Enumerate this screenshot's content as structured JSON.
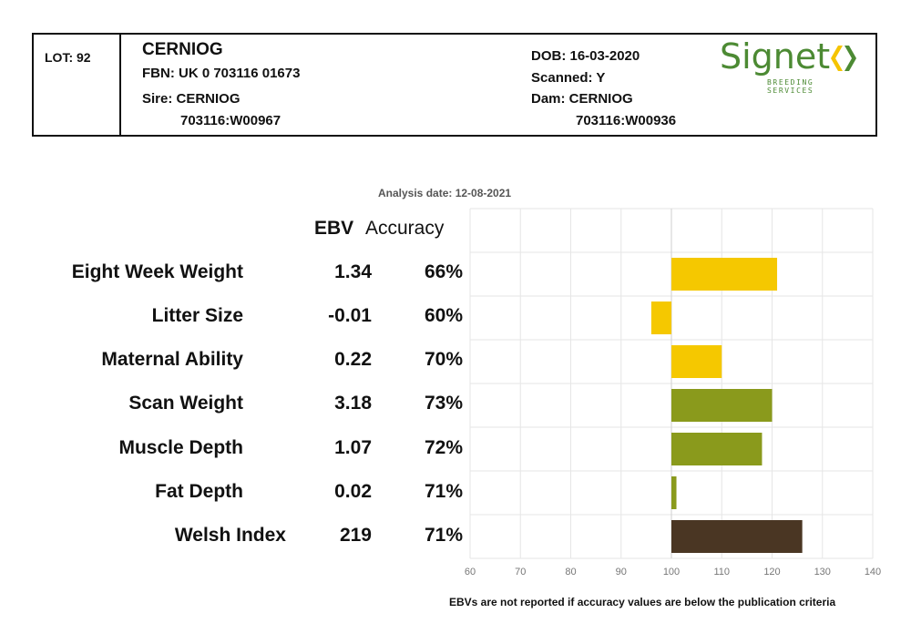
{
  "header": {
    "lot": "LOT: 92",
    "name": "CERNIOG",
    "fbn": "FBN: UK 0 703116 01673",
    "sire_label": "Sire: CERNIOG",
    "sire_id": "703116:W00967",
    "dob": "DOB: 16-03-2020",
    "scanned": "Scanned: Y",
    "dam_label": "Dam: CERNIOG",
    "dam_id": "703116:W00936"
  },
  "logo": {
    "word": "Signet",
    "sub": "BREEDING SERVICES",
    "colors": {
      "green": "#4c8a33",
      "yellow": "#f5c400"
    }
  },
  "analysis_date": "Analysis date: 12-08-2021",
  "columns": {
    "ebv": "EBV",
    "accuracy": "Accuracy"
  },
  "rows": [
    {
      "trait": "Eight Week Weight",
      "ebv": "1.34",
      "accuracy": "66%"
    },
    {
      "trait": "Litter Size",
      "ebv": "-0.01",
      "accuracy": "60%"
    },
    {
      "trait": "Maternal Ability",
      "ebv": "0.22",
      "accuracy": "70%"
    },
    {
      "trait": "Scan Weight",
      "ebv": "3.18",
      "accuracy": "73%"
    },
    {
      "trait": "Muscle Depth",
      "ebv": "1.07",
      "accuracy": "72%"
    },
    {
      "trait": "Fat Depth",
      "ebv": "0.02",
      "accuracy": "71%"
    },
    {
      "trait": "Welsh Index",
      "ebv": "219",
      "accuracy": "71%"
    }
  ],
  "chart_data": {
    "type": "bar",
    "orientation": "horizontal",
    "baseline": 100,
    "categories": [
      "Eight Week Weight",
      "Litter Size",
      "Maternal Ability",
      "Scan Weight",
      "Muscle Depth",
      "Fat Depth",
      "Welsh Index"
    ],
    "values": [
      121,
      96,
      110,
      120,
      118,
      101,
      126
    ],
    "colors": [
      "#f5c800",
      "#f5c800",
      "#f5c800",
      "#8a9a1c",
      "#8a9a1c",
      "#8a9a1c",
      "#4a3623"
    ],
    "xlim": [
      60,
      140
    ],
    "xticks": [
      "60",
      "70",
      "80",
      "90",
      "100",
      "110",
      "120",
      "130",
      "140"
    ],
    "grid": true
  },
  "footnote": "EBVs are not reported if accuracy values are below the publication criteria"
}
